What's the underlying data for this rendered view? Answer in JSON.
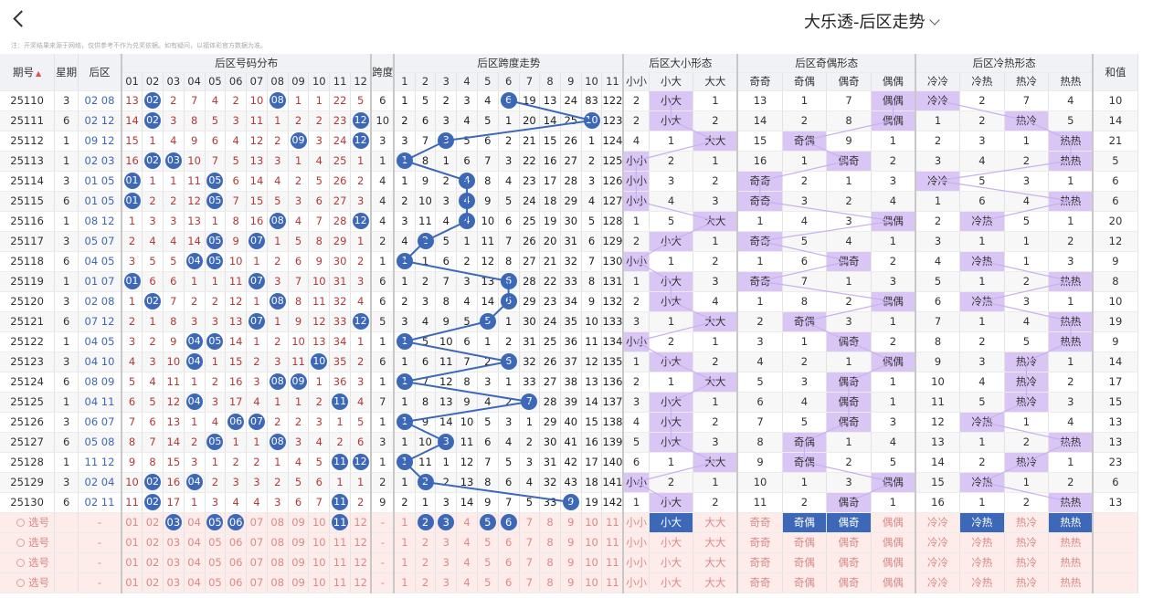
{
  "header": {
    "title": "大乐透-后区走势",
    "notice": "注：开奖结果来源于网络，仅供参考不作为兑奖依据。如有疑问，以福体彩官方数据为准。"
  },
  "columns": {
    "issue": "期号",
    "week": "星期",
    "back": "后区",
    "dist": "后区号码分布",
    "span": "跨度",
    "span_trend": "后区跨度走势",
    "size": "后区大小形态",
    "parity": "后区奇偶形态",
    "hotcold": "后区冷热形态",
    "sum": "和值",
    "nums": [
      "01",
      "02",
      "03",
      "04",
      "05",
      "06",
      "07",
      "08",
      "09",
      "10",
      "11",
      "12"
    ],
    "span_nums": [
      "1",
      "2",
      "3",
      "4",
      "5",
      "6",
      "7",
      "8",
      "9",
      "10",
      "11"
    ],
    "size_sub": [
      "小小",
      "小大",
      "大大"
    ],
    "parity_sub": [
      "奇奇",
      "奇偶",
      "偶奇",
      "偶偶"
    ],
    "hc_sub": [
      "冷冷",
      "冷热",
      "热冷",
      "热热"
    ]
  },
  "rows": [
    {
      "issue": "25110",
      "week": "3",
      "back": "02 08",
      "dist": [
        13,
        "B",
        2,
        7,
        4,
        2,
        10,
        "B",
        1,
        1,
        22,
        5
      ],
      "span": "6",
      "sp": [
        1,
        5,
        2,
        3,
        4,
        "B",
        19,
        13,
        24,
        83,
        122
      ],
      "size": [
        2,
        "小大",
        1
      ],
      "size_h": 1,
      "par": [
        13,
        1,
        7,
        "偶偶"
      ],
      "par_h": 3,
      "hc": [
        "冷冷",
        2,
        7,
        4
      ],
      "hc_h": 0,
      "sum": "10"
    },
    {
      "issue": "25111",
      "week": "6",
      "back": "02 12",
      "dist": [
        14,
        "B",
        3,
        8,
        5,
        3,
        11,
        1,
        2,
        2,
        23,
        "B"
      ],
      "span": "10",
      "sp": [
        2,
        6,
        3,
        4,
        5,
        1,
        20,
        14,
        25,
        "B",
        123
      ],
      "size": [
        2,
        "小大",
        2
      ],
      "size_h": 1,
      "par": [
        14,
        2,
        8,
        "偶偶"
      ],
      "par_h": 3,
      "hc": [
        1,
        2,
        "热冷",
        5
      ],
      "hc_h": 2,
      "sum": "14"
    },
    {
      "issue": "25112",
      "week": "1",
      "back": "09 12",
      "dist": [
        15,
        1,
        4,
        9,
        6,
        4,
        12,
        2,
        "B",
        3,
        24,
        "B"
      ],
      "span": "3",
      "sp": [
        3,
        7,
        "B",
        5,
        6,
        2,
        21,
        15,
        26,
        1,
        124
      ],
      "size": [
        4,
        1,
        "大大"
      ],
      "size_h": 2,
      "par": [
        15,
        "奇偶",
        9,
        1
      ],
      "par_h": 1,
      "hc": [
        2,
        3,
        1,
        "热热"
      ],
      "hc_h": 3,
      "sum": "21"
    },
    {
      "issue": "25113",
      "week": "1",
      "back": "02 03",
      "dist": [
        16,
        "B",
        "B",
        10,
        7,
        5,
        13,
        3,
        1,
        4,
        25,
        1
      ],
      "span": "1",
      "sp": [
        "B",
        8,
        1,
        6,
        7,
        3,
        22,
        16,
        27,
        2,
        125
      ],
      "size": [
        "小小",
        2,
        1
      ],
      "size_h": 0,
      "par": [
        16,
        1,
        "偶奇",
        2
      ],
      "par_h": 2,
      "hc": [
        3,
        4,
        2,
        "热热"
      ],
      "hc_h": 3,
      "sum": "5"
    },
    {
      "issue": "25114",
      "week": "3",
      "back": "01 05",
      "dist": [
        "B",
        1,
        1,
        11,
        "B",
        6,
        14,
        4,
        2,
        5,
        26,
        2
      ],
      "span": "4",
      "sp": [
        1,
        9,
        2,
        "B",
        8,
        4,
        23,
        17,
        28,
        3,
        126
      ],
      "size": [
        "小小",
        3,
        2
      ],
      "size_h": 0,
      "par": [
        "奇奇",
        2,
        1,
        3
      ],
      "par_h": 0,
      "hc": [
        "冷冷",
        5,
        3,
        1
      ],
      "hc_h": 0,
      "sum": "6"
    },
    {
      "issue": "25115",
      "week": "6",
      "back": "01 05",
      "dist": [
        "B",
        2,
        2,
        12,
        "B",
        7,
        15,
        5,
        3,
        6,
        27,
        3
      ],
      "span": "4",
      "sp": [
        2,
        10,
        3,
        "B",
        9,
        5,
        24,
        18,
        29,
        4,
        127
      ],
      "size": [
        "小小",
        4,
        3
      ],
      "size_h": 0,
      "par": [
        "奇奇",
        3,
        2,
        4
      ],
      "par_h": 0,
      "hc": [
        1,
        6,
        4,
        "热热"
      ],
      "hc_h": 3,
      "sum": "6"
    },
    {
      "issue": "25116",
      "week": "1",
      "back": "08 12",
      "dist": [
        1,
        3,
        3,
        13,
        1,
        8,
        16,
        "B",
        4,
        7,
        28,
        "B"
      ],
      "span": "4",
      "sp": [
        3,
        11,
        4,
        "B",
        10,
        6,
        25,
        19,
        30,
        5,
        128
      ],
      "size": [
        1,
        5,
        "大大"
      ],
      "size_h": 2,
      "par": [
        1,
        4,
        3,
        "偶偶"
      ],
      "par_h": 3,
      "hc": [
        2,
        "冷热",
        5,
        1
      ],
      "hc_h": 1,
      "sum": "20"
    },
    {
      "issue": "25117",
      "week": "3",
      "back": "05 07",
      "dist": [
        2,
        4,
        4,
        14,
        "B",
        9,
        "B",
        1,
        5,
        8,
        29,
        1
      ],
      "span": "2",
      "sp": [
        4,
        "B",
        5,
        1,
        11,
        7,
        26,
        20,
        31,
        6,
        129
      ],
      "size": [
        2,
        "小大",
        1
      ],
      "size_h": 1,
      "par": [
        "奇奇",
        5,
        4,
        1
      ],
      "par_h": 0,
      "hc": [
        3,
        1,
        1,
        2
      ],
      "hc_h": -1,
      "sum": "12"
    },
    {
      "issue": "25118",
      "week": "6",
      "back": "04 05",
      "dist": [
        3,
        5,
        5,
        "B",
        "B",
        10,
        1,
        2,
        6,
        9,
        30,
        2
      ],
      "span": "1",
      "sp": [
        "B",
        1,
        6,
        2,
        12,
        8,
        27,
        21,
        32,
        7,
        130
      ],
      "size": [
        "小小",
        1,
        2
      ],
      "size_h": 0,
      "par": [
        1,
        6,
        "偶奇",
        2
      ],
      "par_h": 2,
      "hc": [
        4,
        "冷热",
        1,
        3
      ],
      "hc_h": 1,
      "sum": "9"
    },
    {
      "issue": "25119",
      "week": "1",
      "back": "01 07",
      "dist": [
        "B",
        6,
        6,
        1,
        1,
        11,
        "B",
        3,
        7,
        10,
        31,
        3
      ],
      "span": "6",
      "sp": [
        1,
        2,
        7,
        3,
        13,
        "B",
        28,
        22,
        33,
        8,
        131
      ],
      "size": [
        1,
        "小大",
        3
      ],
      "size_h": 1,
      "par": [
        "奇奇",
        7,
        1,
        3
      ],
      "par_h": 0,
      "hc": [
        5,
        1,
        2,
        "热热"
      ],
      "hc_h": 3,
      "sum": "8"
    },
    {
      "issue": "25120",
      "week": "3",
      "back": "02 08",
      "dist": [
        1,
        "B",
        7,
        2,
        2,
        12,
        1,
        "B",
        8,
        11,
        32,
        4
      ],
      "span": "6",
      "sp": [
        2,
        3,
        8,
        4,
        14,
        "B",
        29,
        23,
        34,
        9,
        132
      ],
      "size": [
        2,
        "小大",
        4
      ],
      "size_h": 1,
      "par": [
        1,
        8,
        2,
        "偶偶"
      ],
      "par_h": 3,
      "hc": [
        6,
        "冷热",
        3,
        1
      ],
      "hc_h": 1,
      "sum": "10"
    },
    {
      "issue": "25121",
      "week": "6",
      "back": "07 12",
      "dist": [
        2,
        1,
        8,
        3,
        3,
        13,
        "B",
        1,
        9,
        12,
        33,
        "B"
      ],
      "span": "5",
      "sp": [
        3,
        4,
        9,
        5,
        "B",
        1,
        30,
        24,
        35,
        10,
        133
      ],
      "size": [
        3,
        1,
        "大大"
      ],
      "size_h": 2,
      "par": [
        2,
        "奇偶",
        3,
        1
      ],
      "par_h": 1,
      "hc": [
        7,
        1,
        4,
        "热热"
      ],
      "hc_h": 3,
      "sum": "19"
    },
    {
      "issue": "25122",
      "week": "1",
      "back": "04 05",
      "dist": [
        3,
        2,
        9,
        "B",
        "B",
        14,
        1,
        2,
        10,
        13,
        34,
        1
      ],
      "span": "1",
      "sp": [
        "B",
        5,
        10,
        6,
        1,
        2,
        31,
        25,
        36,
        11,
        134
      ],
      "size": [
        "小小",
        2,
        1
      ],
      "size_h": 0,
      "par": [
        3,
        1,
        "偶奇",
        2
      ],
      "par_h": 2,
      "hc": [
        8,
        2,
        5,
        "热热"
      ],
      "hc_h": 3,
      "sum": "9"
    },
    {
      "issue": "25123",
      "week": "3",
      "back": "04 10",
      "dist": [
        4,
        3,
        10,
        "B",
        1,
        15,
        2,
        3,
        11,
        "B",
        35,
        2
      ],
      "span": "6",
      "sp": [
        1,
        6,
        11,
        7,
        2,
        "B",
        32,
        26,
        37,
        12,
        135
      ],
      "size": [
        1,
        "小大",
        2
      ],
      "size_h": 1,
      "par": [
        4,
        2,
        1,
        "偶偶"
      ],
      "par_h": 3,
      "hc": [
        9,
        3,
        "热冷",
        1
      ],
      "hc_h": 2,
      "sum": "14"
    },
    {
      "issue": "25124",
      "week": "6",
      "back": "08 09",
      "dist": [
        5,
        4,
        11,
        1,
        2,
        16,
        3,
        "B",
        "B",
        1,
        36,
        3
      ],
      "span": "1",
      "sp": [
        "B",
        7,
        12,
        8,
        3,
        1,
        33,
        27,
        38,
        13,
        136
      ],
      "size": [
        2,
        1,
        "大大"
      ],
      "size_h": 2,
      "par": [
        5,
        3,
        "偶奇",
        1
      ],
      "par_h": 2,
      "hc": [
        10,
        4,
        "热冷",
        2
      ],
      "hc_h": 2,
      "sum": "17"
    },
    {
      "issue": "25125",
      "week": "1",
      "back": "04 11",
      "dist": [
        6,
        5,
        12,
        "B",
        3,
        17,
        4,
        1,
        1,
        2,
        "B",
        4
      ],
      "span": "7",
      "sp": [
        1,
        8,
        13,
        9,
        4,
        2,
        "B",
        28,
        39,
        14,
        137
      ],
      "size": [
        3,
        "小大",
        1
      ],
      "size_h": 1,
      "par": [
        6,
        4,
        "偶奇",
        1
      ],
      "par_h": 2,
      "hc": [
        11,
        5,
        "热冷",
        3
      ],
      "hc_h": 2,
      "sum": "15"
    },
    {
      "issue": "25126",
      "week": "3",
      "back": "06 07",
      "dist": [
        7,
        6,
        13,
        1,
        4,
        "B",
        "B",
        2,
        2,
        3,
        1,
        5
      ],
      "span": "1",
      "sp": [
        "B",
        9,
        14,
        10,
        5,
        3,
        1,
        29,
        40,
        15,
        138
      ],
      "size": [
        4,
        "小大",
        2
      ],
      "size_h": 1,
      "par": [
        7,
        5,
        "偶奇",
        3
      ],
      "par_h": 2,
      "hc": [
        12,
        "冷热",
        1,
        4
      ],
      "hc_h": 1,
      "sum": "13"
    },
    {
      "issue": "25127",
      "week": "6",
      "back": "05 08",
      "dist": [
        8,
        7,
        14,
        2,
        "B",
        1,
        1,
        "B",
        3,
        4,
        2,
        6
      ],
      "span": "3",
      "sp": [
        1,
        10,
        "B",
        11,
        6,
        4,
        2,
        30,
        41,
        16,
        139
      ],
      "size": [
        5,
        "小大",
        3
      ],
      "size_h": 1,
      "par": [
        8,
        "奇偶",
        1,
        4
      ],
      "par_h": 1,
      "hc": [
        13,
        1,
        2,
        "热热"
      ],
      "hc_h": 3,
      "sum": "13"
    },
    {
      "issue": "25128",
      "week": "1",
      "back": "11 12",
      "dist": [
        9,
        8,
        15,
        3,
        1,
        2,
        2,
        1,
        4,
        5,
        "B",
        "B"
      ],
      "span": "1",
      "sp": [
        "B",
        11,
        1,
        12,
        7,
        5,
        3,
        31,
        42,
        17,
        140
      ],
      "size": [
        6,
        1,
        "大大"
      ],
      "size_h": 2,
      "par": [
        9,
        "奇偶",
        2,
        5
      ],
      "par_h": 1,
      "hc": [
        14,
        2,
        "热冷",
        1
      ],
      "hc_h": 2,
      "sum": "23"
    },
    {
      "issue": "25129",
      "week": "3",
      "back": "02 04",
      "dist": [
        10,
        "B",
        16,
        "B",
        2,
        3,
        3,
        2,
        5,
        6,
        1,
        1
      ],
      "span": "2",
      "sp": [
        1,
        "B",
        2,
        13,
        8,
        6,
        4,
        32,
        43,
        18,
        141
      ],
      "size": [
        "小小",
        2,
        1
      ],
      "size_h": 0,
      "par": [
        10,
        1,
        3,
        "偶偶"
      ],
      "par_h": 3,
      "hc": [
        15,
        "冷热",
        1,
        2
      ],
      "hc_h": 1,
      "sum": "6"
    },
    {
      "issue": "25130",
      "week": "6",
      "back": "02 11",
      "dist": [
        11,
        "B",
        17,
        1,
        3,
        4,
        4,
        3,
        6,
        7,
        "B",
        2
      ],
      "span": "9",
      "sp": [
        2,
        1,
        3,
        14,
        9,
        7,
        5,
        33,
        "B",
        19,
        142
      ],
      "size": [
        1,
        "小大",
        2
      ],
      "size_h": 1,
      "par": [
        11,
        2,
        "偶奇",
        1
      ],
      "par_h": 2,
      "hc": [
        16,
        1,
        2,
        "热热"
      ],
      "hc_h": 3,
      "sum": "13"
    }
  ],
  "sel": {
    "label": "选号",
    "dash": "-",
    "active_dist": [
      "03",
      "05",
      "06",
      "11"
    ],
    "active_span": [
      "2",
      "3",
      "5",
      "6"
    ],
    "active_size": "小大",
    "active_par": [
      "奇偶",
      "偶奇"
    ],
    "active_hc": [
      "冷热",
      "热热"
    ],
    "rows": 4
  }
}
